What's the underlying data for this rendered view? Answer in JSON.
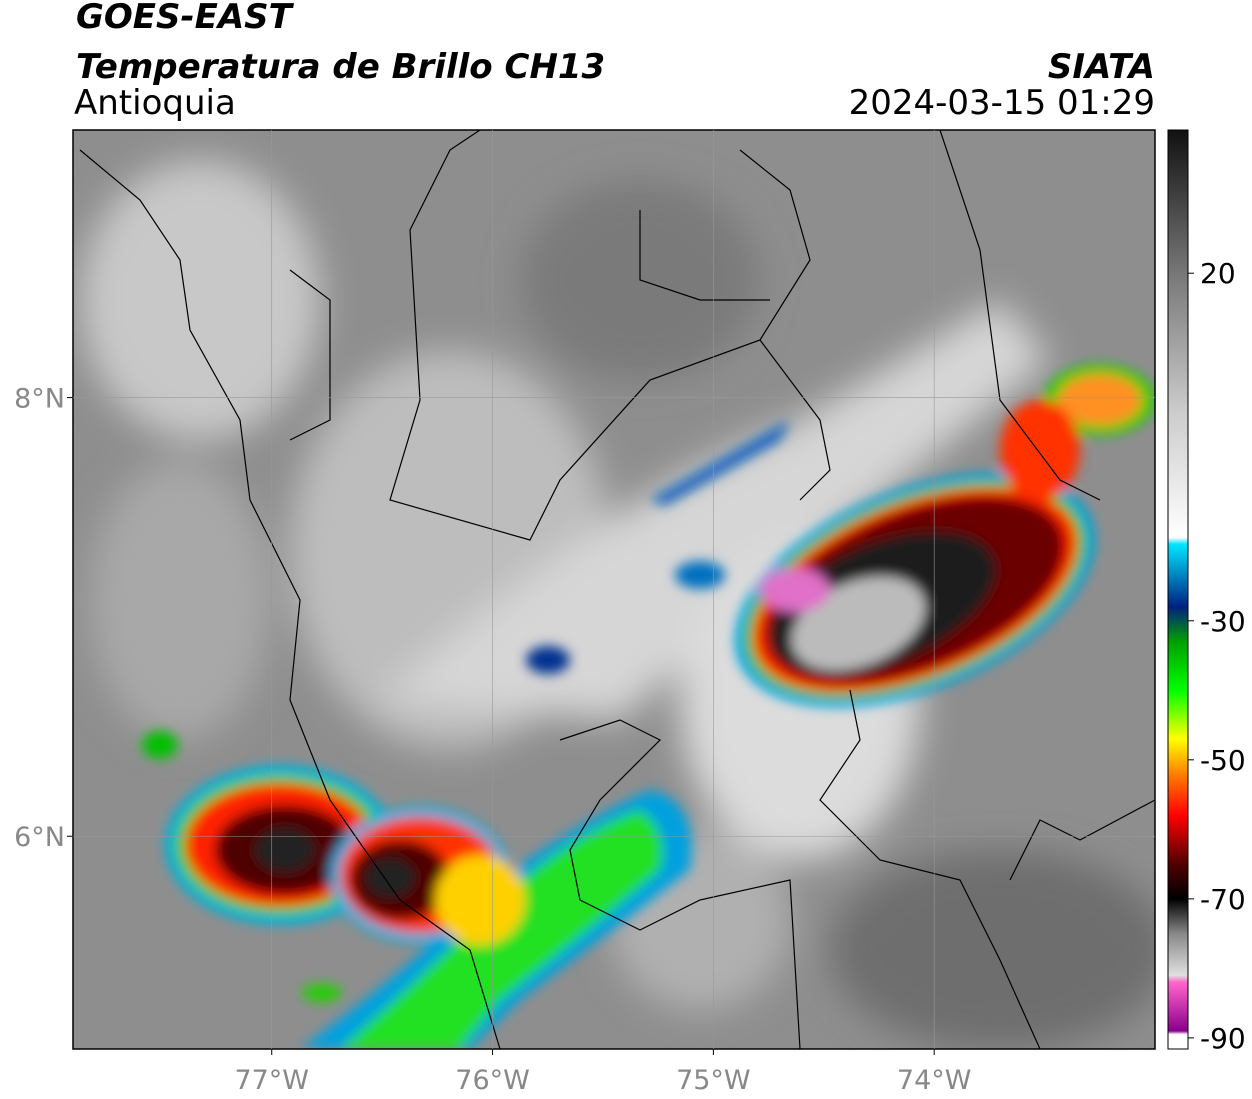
{
  "header": {
    "title": "GOES-EAST",
    "subtitle": "Temperatura de Brillo CH13",
    "region": "Antioquia",
    "source": "SIATA",
    "timestamp": "2024-03-15 01:29"
  },
  "map": {
    "xlim": [
      -77.9,
      -73.0
    ],
    "ylim": [
      5.03,
      9.22
    ],
    "xticks": [
      {
        "value": -77,
        "label": "77°W"
      },
      {
        "value": -76,
        "label": "76°W"
      },
      {
        "value": -75,
        "label": "75°W"
      },
      {
        "value": -74,
        "label": "74°W"
      }
    ],
    "yticks": [
      {
        "value": 6,
        "label": "6°N"
      },
      {
        "value": 8,
        "label": "8°N"
      }
    ],
    "grid": true
  },
  "colorbar": {
    "lim": [
      -91.6,
      40.6
    ],
    "ticks": [
      20,
      -30,
      -50,
      -70,
      -90
    ],
    "stops": [
      {
        "value": 40.6,
        "color": "#111111"
      },
      {
        "value": 20,
        "color": "#777777"
      },
      {
        "value": 0,
        "color": "#cccccc"
      },
      {
        "value": -18,
        "color": "#ffffff"
      },
      {
        "value": -19,
        "color": "#00e5ff"
      },
      {
        "value": -28,
        "color": "#002080"
      },
      {
        "value": -33,
        "color": "#00a000"
      },
      {
        "value": -40,
        "color": "#00ff00"
      },
      {
        "value": -47,
        "color": "#ffff00"
      },
      {
        "value": -52,
        "color": "#ff8000"
      },
      {
        "value": -58,
        "color": "#ff0000"
      },
      {
        "value": -65,
        "color": "#500000"
      },
      {
        "value": -70,
        "color": "#000000"
      },
      {
        "value": -75,
        "color": "#888888"
      },
      {
        "value": -81,
        "color": "#e0e0e0"
      },
      {
        "value": -82,
        "color": "#ff66cc"
      },
      {
        "value": -89,
        "color": "#8b008b"
      },
      {
        "value": -89.5,
        "color": "#ffffff"
      },
      {
        "value": -91.6,
        "color": "#ffffff"
      }
    ]
  }
}
